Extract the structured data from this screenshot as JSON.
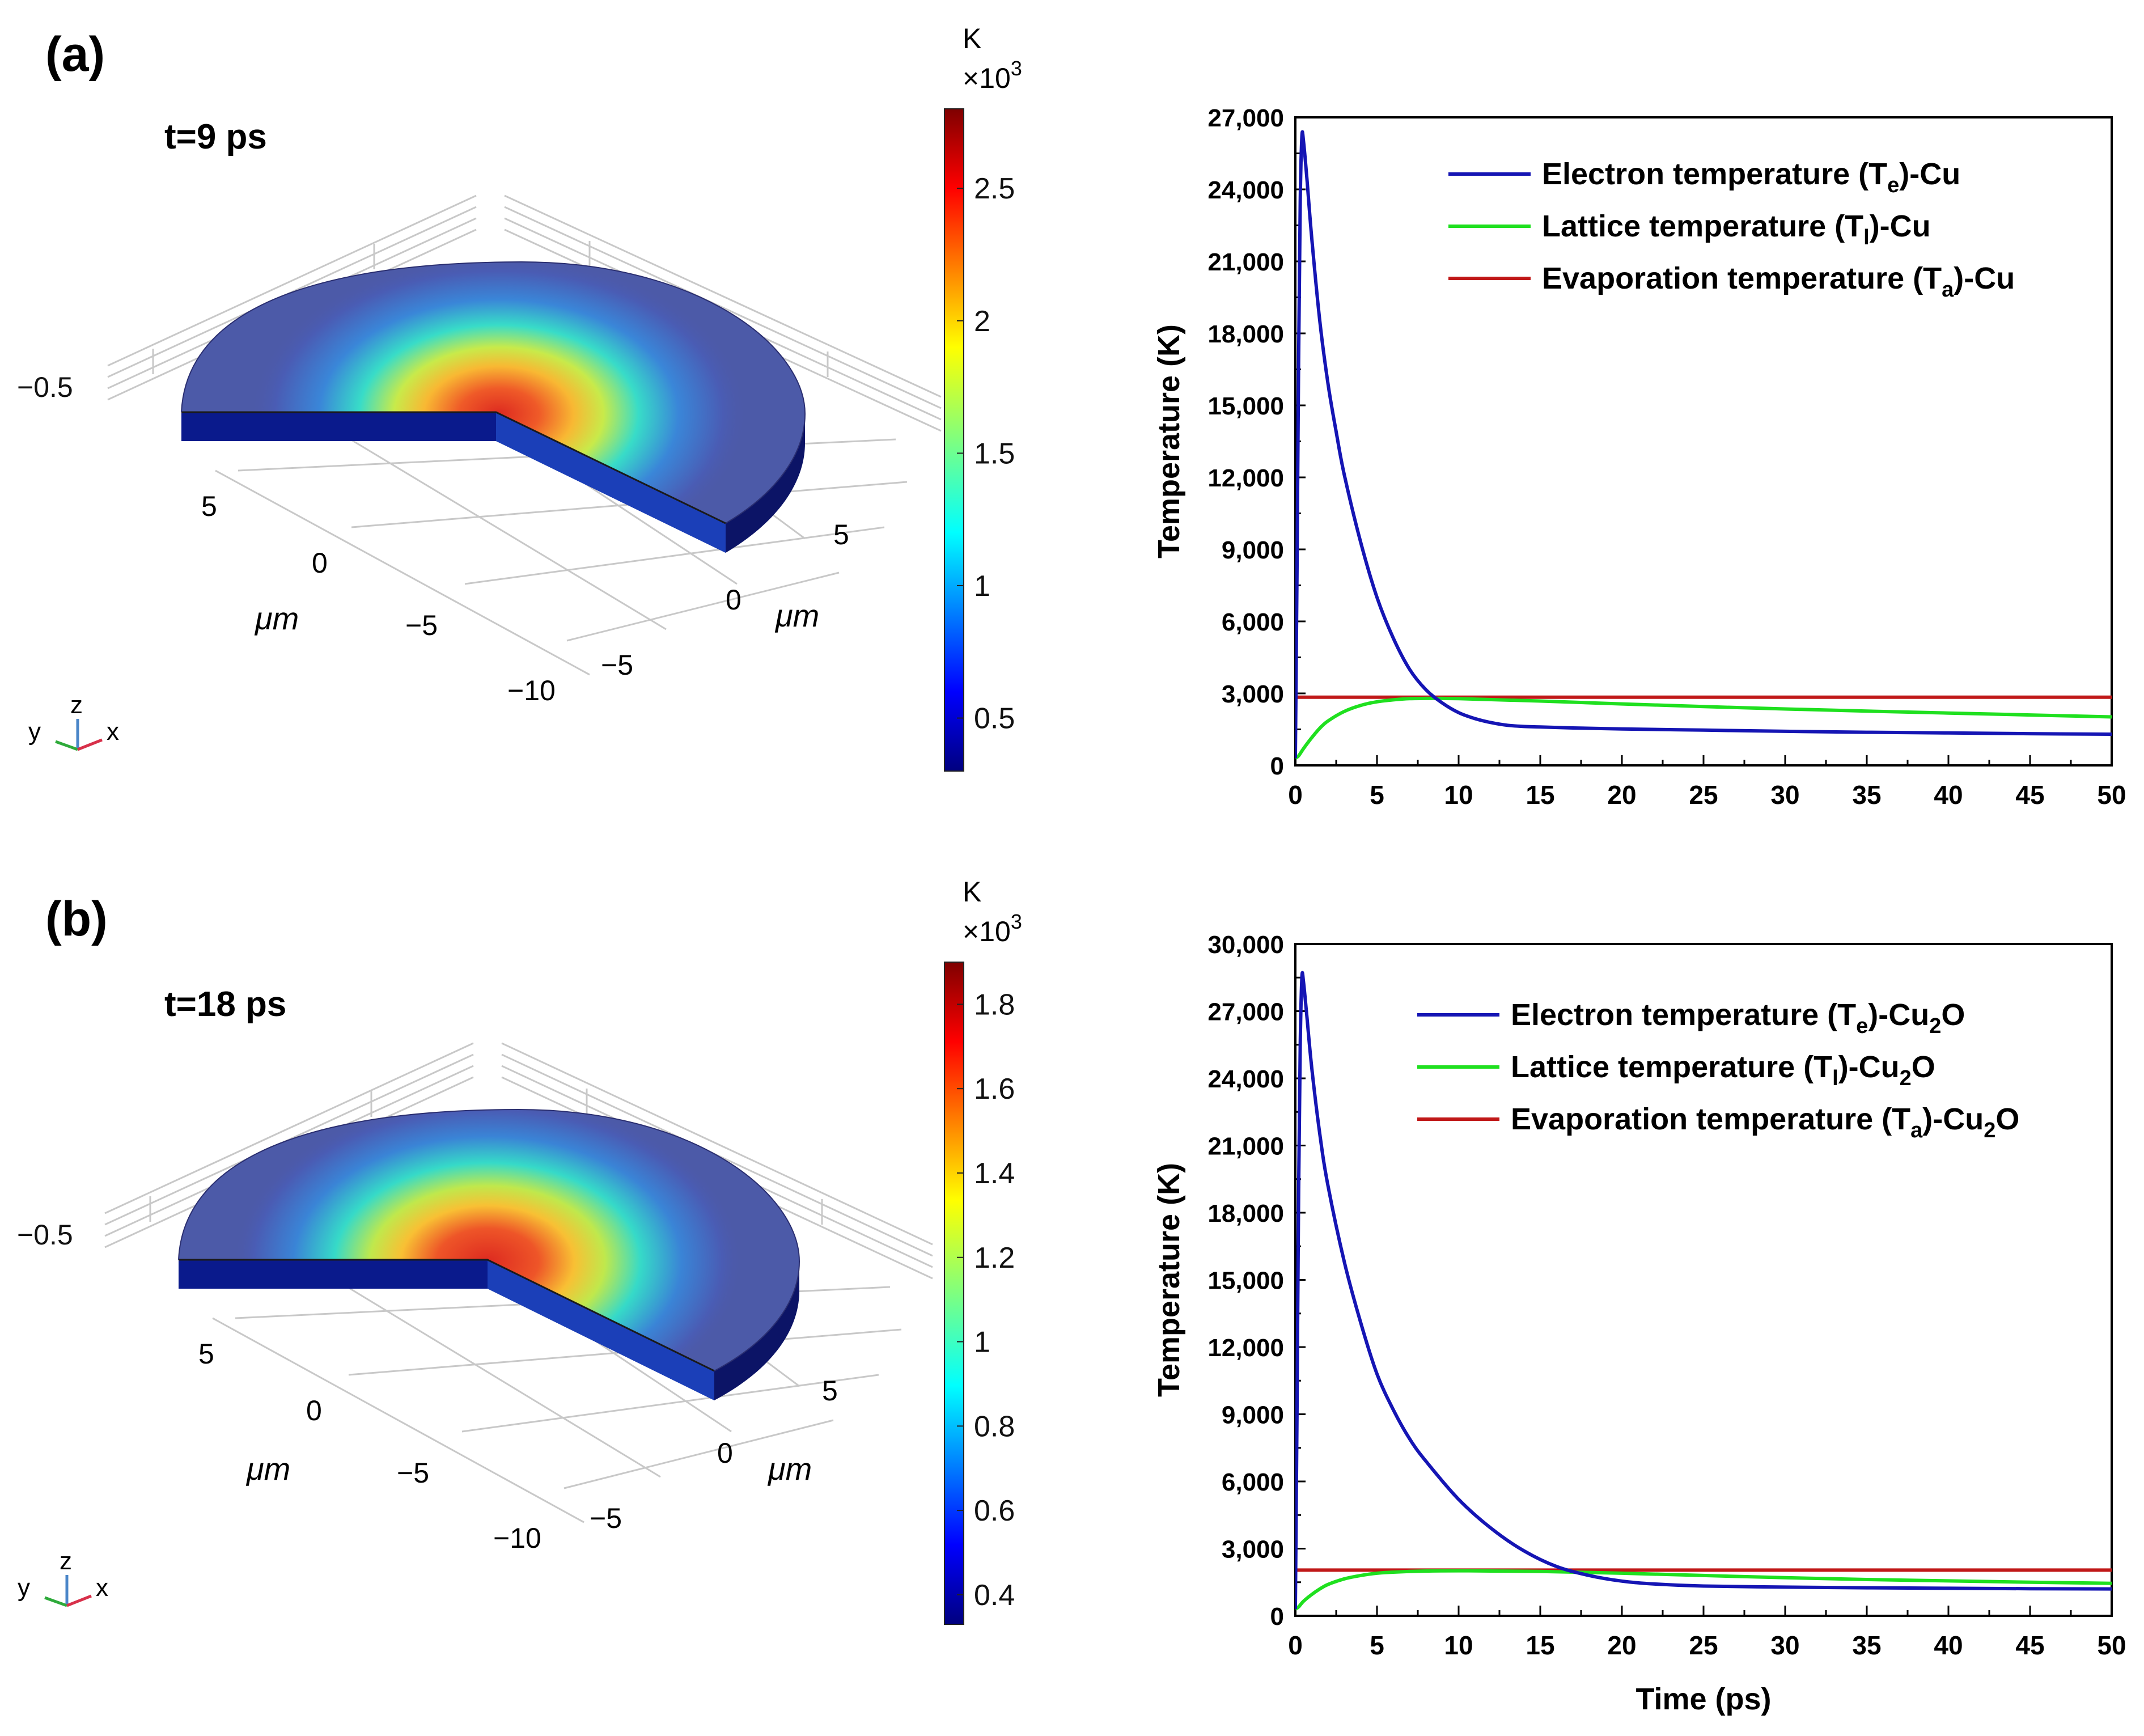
{
  "panels": [
    {
      "label": "(a)",
      "time_label": "t=9 ps",
      "colorbar": {
        "unit": "K",
        "scale": "×10",
        "exp": "3",
        "ticks": [
          "0.5",
          "1",
          "1.5",
          "2",
          "2.5"
        ]
      },
      "axes3d": {
        "z_tick": "−0.5",
        "y_ticks": [
          "5",
          "0",
          "−5",
          "−10"
        ],
        "x_ticks": [
          "5",
          "0",
          "−5"
        ],
        "y_unit": "μm",
        "x_unit": "μm",
        "triad": {
          "x": "x",
          "y": "y",
          "z": "z"
        }
      }
    },
    {
      "label": "(b)",
      "time_label": "t=18 ps",
      "colorbar": {
        "unit": "K",
        "scale": "×10",
        "exp": "3",
        "ticks": [
          "0.4",
          "0.6",
          "0.8",
          "1",
          "1.2",
          "1.4",
          "1.6",
          "1.8"
        ]
      },
      "axes3d": {
        "z_tick": "−0.5",
        "y_ticks": [
          "5",
          "0",
          "−5",
          "−10"
        ],
        "x_ticks": [
          "5",
          "0",
          "−5"
        ],
        "y_unit": "μm",
        "x_unit": "μm",
        "triad": {
          "x": "x",
          "y": "y",
          "z": "z"
        }
      }
    }
  ],
  "chart_data": [
    {
      "type": "line",
      "title": "",
      "xlabel": "",
      "ylabel": "Temperature (K)",
      "xlim": [
        0,
        50
      ],
      "ylim": [
        0,
        27000
      ],
      "xticks": [
        "0",
        "5",
        "10",
        "15",
        "20",
        "25",
        "30",
        "35",
        "40",
        "45",
        "50"
      ],
      "yticks": [
        "0",
        "3,000",
        "6,000",
        "9,000",
        "12,000",
        "15,000",
        "18,000",
        "21,000",
        "24,000",
        "27,000"
      ],
      "legend_position": "top-right",
      "colors": {
        "electron": "#1515b4",
        "lattice": "#1fe01f",
        "evaporation": "#c01818"
      },
      "legend": [
        {
          "pre": "Electron temperature (T",
          "sub": "e",
          "post": ")-Cu"
        },
        {
          "pre": "Lattice temperature (T",
          "sub": "l",
          "post": ")-Cu"
        },
        {
          "pre": "Evaporation temperature (T",
          "sub": "a",
          "post": ")-Cu"
        }
      ],
      "series": [
        {
          "name": "Electron temperature (Te)-Cu",
          "x": [
            0,
            0.1,
            0.2,
            0.3,
            0.4,
            0.5,
            0.7,
            1,
            1.5,
            2,
            2.5,
            3,
            4,
            5,
            6,
            7,
            8,
            9,
            10,
            11,
            12,
            13,
            14,
            15,
            17,
            20,
            25,
            30,
            35,
            40,
            45,
            50
          ],
          "y": [
            300,
            8000,
            17000,
            23500,
            26200,
            26000,
            24500,
            22000,
            18500,
            15900,
            13900,
            12100,
            9300,
            7000,
            5300,
            4000,
            3150,
            2600,
            2200,
            1950,
            1780,
            1670,
            1620,
            1600,
            1560,
            1520,
            1470,
            1420,
            1380,
            1350,
            1320,
            1300
          ]
        },
        {
          "name": "Lattice temperature (Tl)-Cu",
          "x": [
            0,
            0.2,
            0.5,
            1,
            1.5,
            2,
            3,
            4,
            5,
            6,
            7,
            8,
            9,
            10,
            12,
            15,
            20,
            25,
            30,
            35,
            40,
            45,
            50
          ],
          "y": [
            300,
            400,
            700,
            1150,
            1550,
            1850,
            2250,
            2500,
            2650,
            2730,
            2780,
            2790,
            2790,
            2780,
            2740,
            2680,
            2560,
            2450,
            2350,
            2260,
            2180,
            2100,
            2020
          ]
        },
        {
          "name": "Evaporation temperature (Ta)-Cu",
          "x": [
            0,
            50
          ],
          "y": [
            2840,
            2840
          ]
        }
      ]
    },
    {
      "type": "line",
      "title": "",
      "xlabel": "Time (ps)",
      "ylabel": "Temperature (K)",
      "xlim": [
        0,
        50
      ],
      "ylim": [
        0,
        30000
      ],
      "xticks": [
        "0",
        "5",
        "10",
        "15",
        "20",
        "25",
        "30",
        "35",
        "40",
        "45",
        "50"
      ],
      "yticks": [
        "0",
        "3,000",
        "6,000",
        "9,000",
        "12,000",
        "15,000",
        "18,000",
        "21,000",
        "24,000",
        "27,000",
        "30,000"
      ],
      "legend_position": "top-right",
      "colors": {
        "electron": "#1515b4",
        "lattice": "#1fe01f",
        "evaporation": "#c01818"
      },
      "legend": [
        {
          "pre": "Electron temperature (T",
          "sub": "e",
          "post": ")-Cu",
          "sub2": "2",
          "post2": "O"
        },
        {
          "pre": "Lattice temperature (T",
          "sub": "l",
          "post": ")-Cu",
          "sub2": "2",
          "post2": "O"
        },
        {
          "pre": "Evaporation temperature (T",
          "sub": "a",
          "post": ")-Cu",
          "sub2": "2",
          "post2": "O"
        }
      ],
      "series": [
        {
          "name": "Electron temperature (Te)-Cu2O",
          "x": [
            0,
            0.1,
            0.2,
            0.3,
            0.4,
            0.5,
            0.7,
            1,
            1.5,
            2,
            3,
            4,
            5,
            6,
            7,
            8,
            10,
            12,
            14,
            16,
            18,
            20,
            22,
            25,
            30,
            35,
            40,
            45,
            50
          ],
          "y": [
            300,
            9000,
            19000,
            25500,
            28500,
            28300,
            26800,
            24500,
            21500,
            19200,
            15800,
            13100,
            10800,
            9200,
            7900,
            6900,
            5200,
            3900,
            2900,
            2200,
            1800,
            1550,
            1420,
            1330,
            1280,
            1250,
            1230,
            1210,
            1200
          ]
        },
        {
          "name": "Lattice temperature (Tl)-Cu2O",
          "x": [
            0,
            0.2,
            0.5,
            1,
            1.5,
            2,
            3,
            4,
            5,
            6,
            8,
            10,
            12,
            15,
            20,
            25,
            30,
            35,
            40,
            45,
            50
          ],
          "y": [
            300,
            400,
            650,
            950,
            1200,
            1400,
            1650,
            1800,
            1900,
            1950,
            2000,
            2010,
            2000,
            1980,
            1900,
            1800,
            1700,
            1620,
            1560,
            1500,
            1450
          ]
        },
        {
          "name": "Evaporation temperature (Ta)-Cu2O",
          "x": [
            0,
            50
          ],
          "y": [
            2040,
            2040
          ]
        }
      ]
    }
  ]
}
